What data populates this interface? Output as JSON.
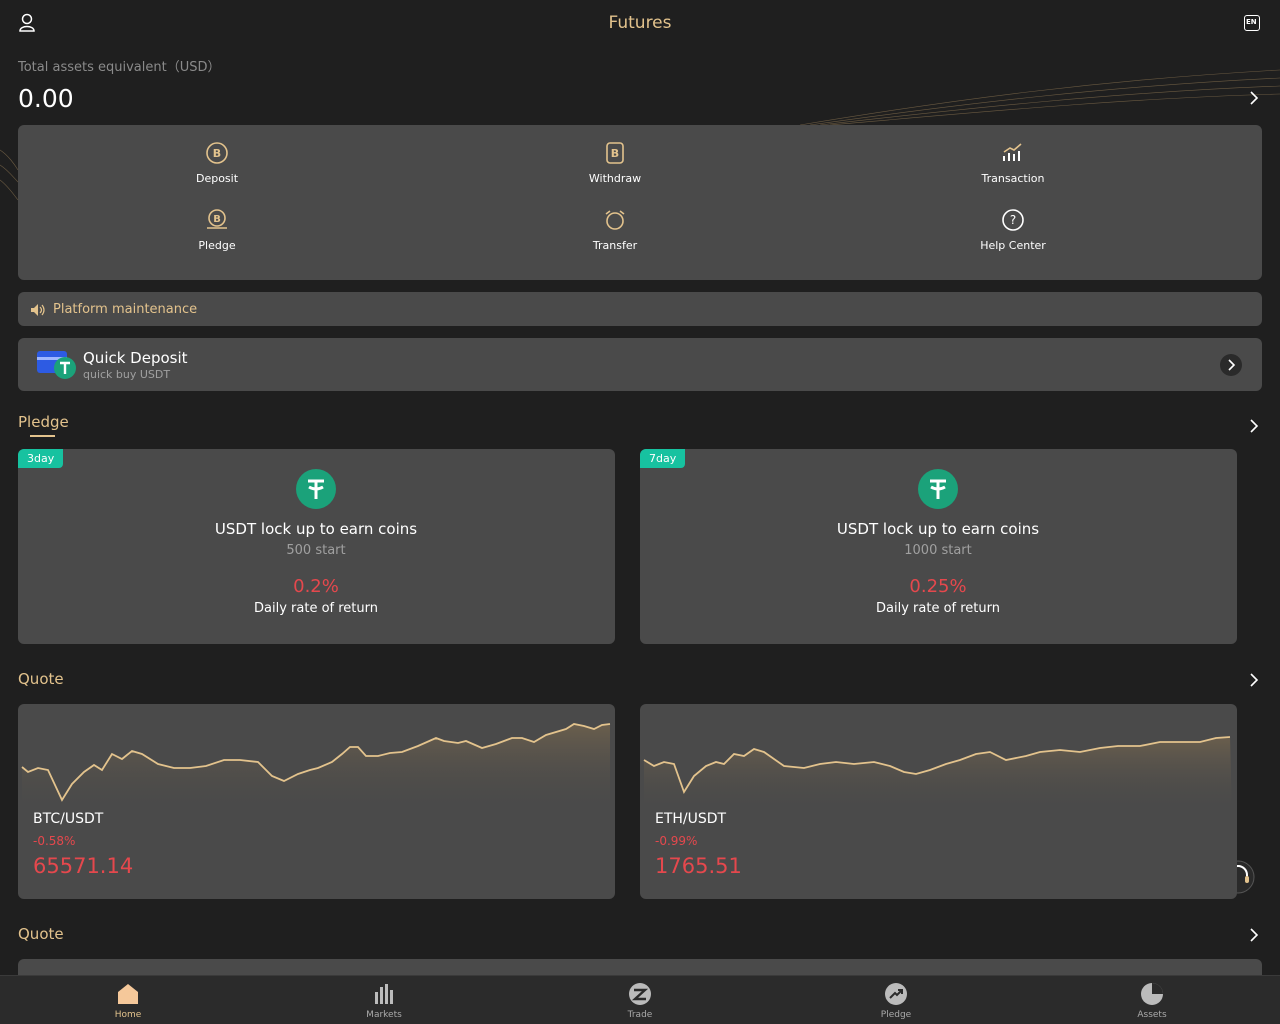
{
  "header": {
    "title": "Futures",
    "lang": "EN"
  },
  "assets": {
    "label": "Total assets equivalent（USD）",
    "value": "0.00"
  },
  "actions": [
    "Deposit",
    "Withdraw",
    "Transaction",
    "Pledge",
    "Transfer",
    "Help Center"
  ],
  "notice": "Platform maintenance",
  "quick_deposit": {
    "title": "Quick Deposit",
    "subtitle": "quick buy USDT"
  },
  "pledge": {
    "title": "Pledge",
    "cards": [
      {
        "tag": "3day",
        "title": "USDT lock up to earn coins",
        "min": "500 start",
        "rate": "0.2%",
        "rate_label": "Daily rate of return"
      },
      {
        "tag": "7day",
        "title": "USDT lock up to earn coins",
        "min": "1000 start",
        "rate": "0.25%",
        "rate_label": "Daily rate of return"
      }
    ]
  },
  "quote": {
    "title": "Quote",
    "cards": [
      {
        "pair": "BTC/USDT",
        "change": "-0.58%",
        "price": "65571.14"
      },
      {
        "pair": "ETH/USDT",
        "change": "-0.99%",
        "price": "1765.51"
      }
    ]
  },
  "quote2": {
    "title": "Quote"
  },
  "nav": [
    "Home",
    "Markets",
    "Trade",
    "Pledge",
    "Assets"
  ]
}
